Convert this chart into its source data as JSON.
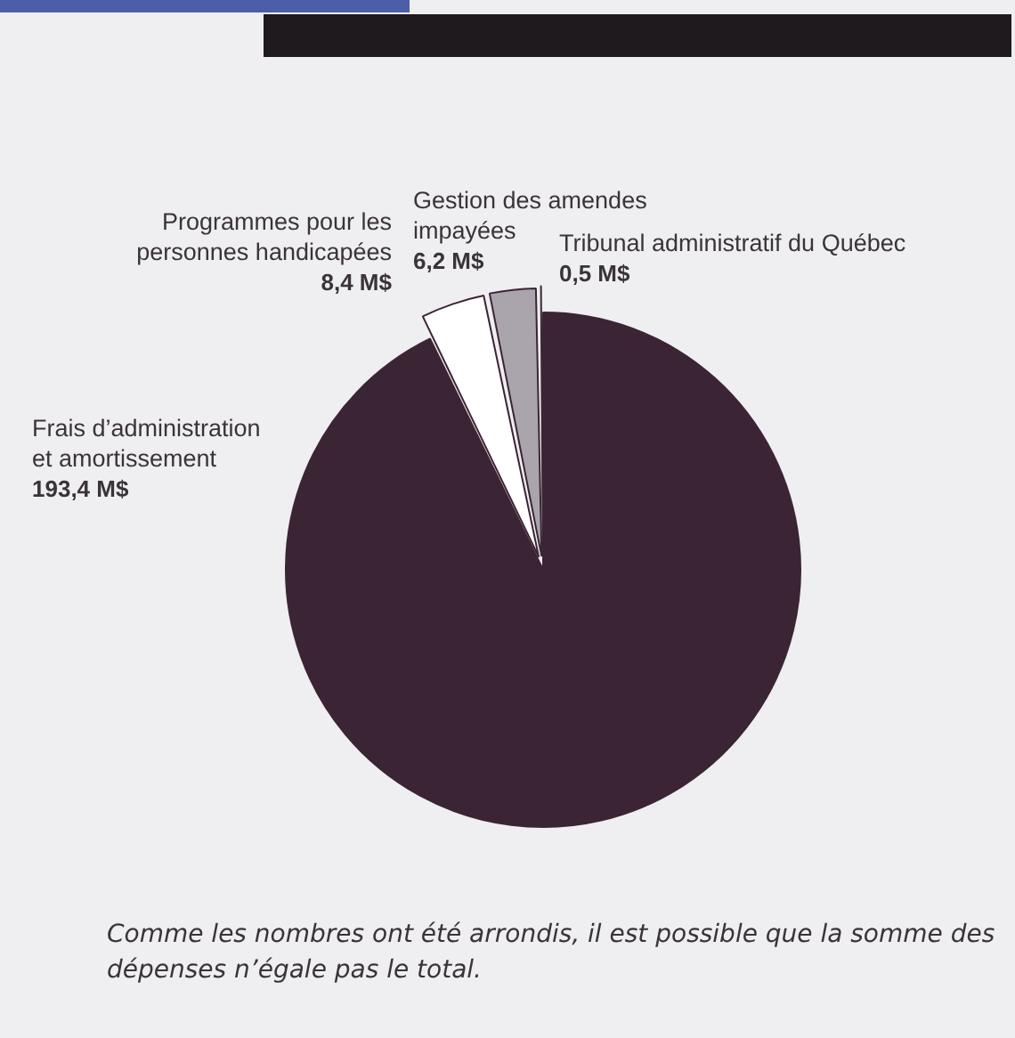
{
  "chart_data": {
    "type": "pie",
    "categories": [
      "Frais d’administration et amortissement",
      "Programmes pour les personnes handicapées",
      "Gestion des amendes impayées",
      "Tribunal administratif du Québec"
    ],
    "values": [
      193.4,
      8.4,
      6.2,
      0.5
    ],
    "value_labels": [
      "193,4 M$",
      "8,4 M$",
      "6,2 M$",
      "0,5 M$"
    ],
    "colors": [
      "#3b2535",
      "#ffffff",
      "#aaa4ac",
      "#8e8793"
    ],
    "annotations": [
      "Comme les nombres ont été arrondis, il est possible que la somme des dépenses n’égale pas le total."
    ],
    "legend": false
  }
}
